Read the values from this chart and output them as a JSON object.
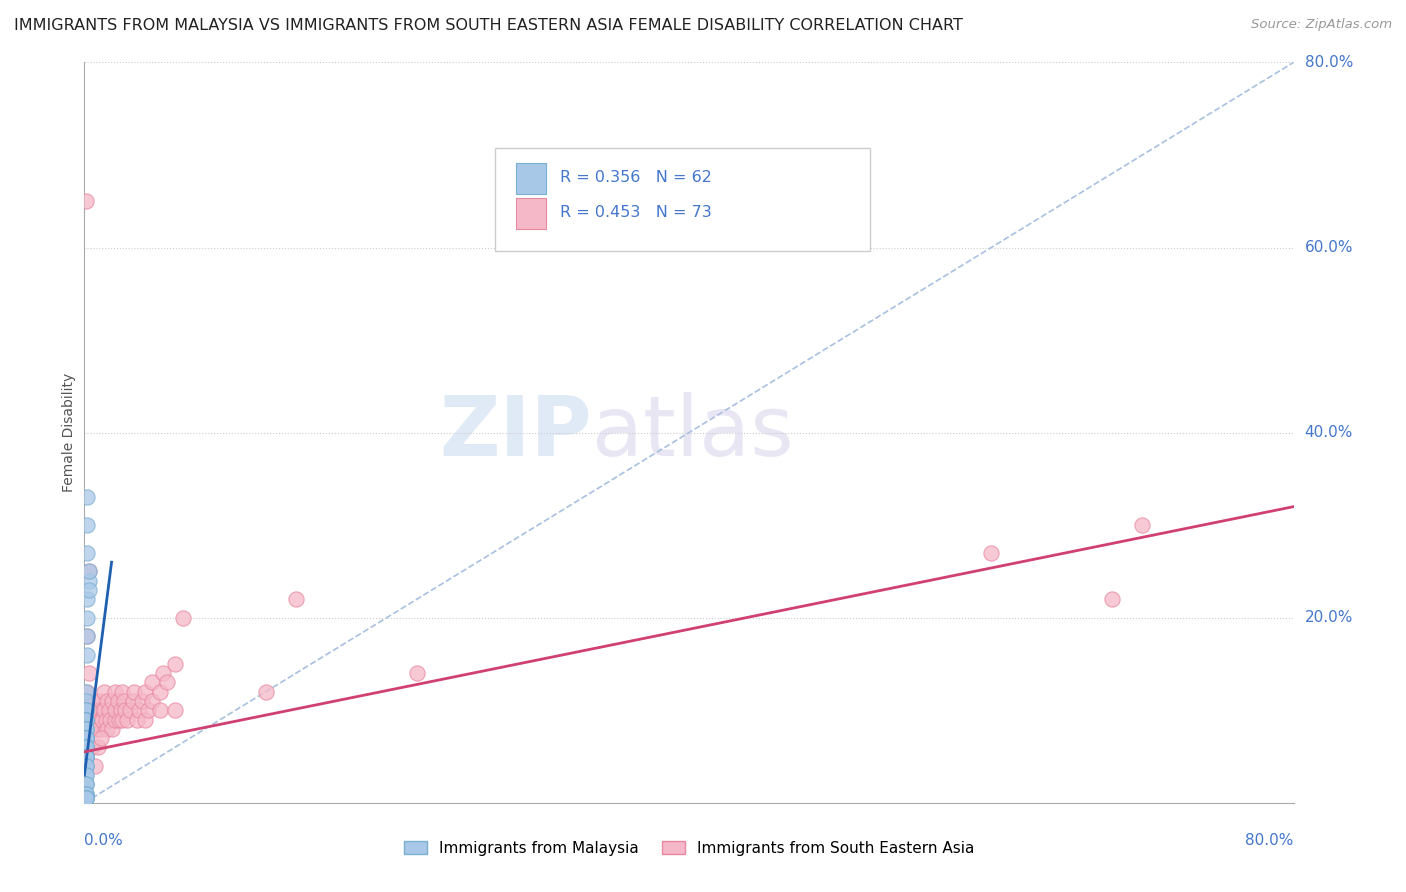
{
  "title": "IMMIGRANTS FROM MALAYSIA VS IMMIGRANTS FROM SOUTH EASTERN ASIA FEMALE DISABILITY CORRELATION CHART",
  "source": "Source: ZipAtlas.com",
  "ylabel": "Female Disability",
  "r_malaysia": 0.356,
  "n_malaysia": 62,
  "r_sea": 0.453,
  "n_sea": 73,
  "color_malaysia_fill": "#a8c8e8",
  "color_malaysia_edge": "#7aafd4",
  "color_sea_fill": "#f5b8c8",
  "color_sea_edge": "#e888a0",
  "color_malaysia_line": "#2060b0",
  "color_sea_line": "#d04070",
  "color_diag_line": "#a8c0e0",
  "color_axis_label": "#4477cc",
  "watermark_color": "#dde8f5",
  "blue_scatter_x": [
    0.002,
    0.002,
    0.002,
    0.003,
    0.002,
    0.002,
    0.002,
    0.002,
    0.003,
    0.003,
    0.001,
    0.001,
    0.001,
    0.001,
    0.001,
    0.001,
    0.001,
    0.001,
    0.001,
    0.001,
    0.001,
    0.001,
    0.001,
    0.001,
    0.001,
    0.001,
    0.001,
    0.001,
    0.001,
    0.001,
    0.001,
    0.001,
    0.001,
    0.001,
    0.001,
    0.001,
    0.001,
    0.001,
    0.001,
    0.001,
    0.001,
    0.001,
    0.001,
    0.001,
    0.001,
    0.001,
    0.001,
    0.001,
    0.001,
    0.001,
    0.001,
    0.001,
    0.001,
    0.001,
    0.001,
    0.001,
    0.001,
    0.001,
    0.001,
    0.001,
    0.001,
    0.001
  ],
  "blue_scatter_y": [
    0.33,
    0.3,
    0.27,
    0.24,
    0.22,
    0.2,
    0.18,
    0.16,
    0.25,
    0.23,
    0.12,
    0.11,
    0.1,
    0.1,
    0.1,
    0.09,
    0.09,
    0.09,
    0.09,
    0.09,
    0.09,
    0.08,
    0.08,
    0.08,
    0.08,
    0.07,
    0.07,
    0.07,
    0.07,
    0.07,
    0.07,
    0.06,
    0.06,
    0.06,
    0.06,
    0.06,
    0.05,
    0.05,
    0.05,
    0.05,
    0.05,
    0.04,
    0.04,
    0.04,
    0.03,
    0.03,
    0.02,
    0.02,
    0.02,
    0.01,
    0.01,
    0.01,
    0.005,
    0.005,
    0.005,
    0.005,
    0.005,
    0.005,
    0.005,
    0.005,
    0.005,
    0.005
  ],
  "pink_scatter_x": [
    0.001,
    0.001,
    0.002,
    0.002,
    0.003,
    0.003,
    0.003,
    0.004,
    0.005,
    0.005,
    0.005,
    0.006,
    0.007,
    0.007,
    0.008,
    0.009,
    0.01,
    0.01,
    0.01,
    0.011,
    0.012,
    0.012,
    0.013,
    0.013,
    0.014,
    0.015,
    0.015,
    0.016,
    0.017,
    0.018,
    0.018,
    0.02,
    0.02,
    0.02,
    0.022,
    0.023,
    0.024,
    0.025,
    0.025,
    0.026,
    0.027,
    0.028,
    0.03,
    0.032,
    0.033,
    0.035,
    0.036,
    0.038,
    0.04,
    0.04,
    0.042,
    0.045,
    0.045,
    0.05,
    0.05,
    0.052,
    0.055,
    0.06,
    0.06,
    0.065,
    0.12,
    0.14,
    0.22,
    0.6,
    0.68,
    0.7,
    0.003,
    0.003,
    0.004,
    0.005,
    0.007,
    0.009,
    0.011
  ],
  "pink_scatter_y": [
    0.65,
    0.09,
    0.12,
    0.18,
    0.1,
    0.14,
    0.085,
    0.08,
    0.1,
    0.09,
    0.11,
    0.09,
    0.08,
    0.1,
    0.09,
    0.08,
    0.1,
    0.11,
    0.09,
    0.08,
    0.1,
    0.09,
    0.12,
    0.1,
    0.09,
    0.11,
    0.08,
    0.1,
    0.09,
    0.11,
    0.08,
    0.12,
    0.09,
    0.1,
    0.11,
    0.09,
    0.1,
    0.12,
    0.09,
    0.11,
    0.1,
    0.09,
    0.1,
    0.11,
    0.12,
    0.09,
    0.1,
    0.11,
    0.12,
    0.09,
    0.1,
    0.13,
    0.11,
    0.12,
    0.1,
    0.14,
    0.13,
    0.15,
    0.1,
    0.2,
    0.12,
    0.22,
    0.14,
    0.27,
    0.22,
    0.3,
    0.25,
    0.1,
    0.08,
    0.06,
    0.04,
    0.06,
    0.07
  ],
  "blue_line_x0": 0.0,
  "blue_line_y0": 0.03,
  "blue_line_x1": 0.018,
  "blue_line_y1": 0.26,
  "pink_line_x0": 0.0,
  "pink_line_y0": 0.055,
  "pink_line_x1": 0.8,
  "pink_line_y1": 0.32,
  "ytick_positions": [
    0.2,
    0.4,
    0.6,
    0.8
  ],
  "ytick_labels": [
    "20.0%",
    "40.0%",
    "60.0%",
    "80.0%"
  ],
  "xlim": [
    0.0,
    0.8
  ],
  "ylim": [
    0.0,
    0.8
  ]
}
